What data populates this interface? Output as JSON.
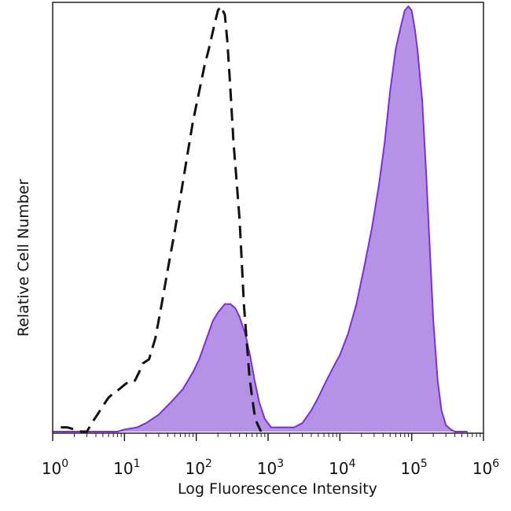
{
  "chart_data": {
    "type": "area",
    "title": "",
    "xlabel": "Log Fluorescence Intensity",
    "ylabel": "Relative Cell Number",
    "xscale": "log",
    "xlim": [
      1,
      1000000
    ],
    "ylim": [
      0,
      1
    ],
    "grid": false,
    "legend": "none",
    "x_ticks": [
      {
        "base": "10",
        "exp": "0",
        "value": 1
      },
      {
        "base": "10",
        "exp": "1",
        "value": 10
      },
      {
        "base": "10",
        "exp": "2",
        "value": 100
      },
      {
        "base": "10",
        "exp": "3",
        "value": 1000
      },
      {
        "base": "10",
        "exp": "4",
        "value": 10000
      },
      {
        "base": "10",
        "exp": "5",
        "value": 100000
      },
      {
        "base": "10",
        "exp": "6",
        "value": 1000000
      }
    ],
    "series": [
      {
        "style": "dashed",
        "color": "#111111",
        "fill": "none",
        "x": [
          1.3,
          1.6,
          2.0,
          2.5,
          3.0,
          3.5,
          4.2,
          5.0,
          6.0,
          7.0,
          8.5,
          10,
          12,
          14,
          16,
          18,
          22,
          27,
          33,
          40,
          50,
          60,
          75,
          90,
          110,
          130,
          150,
          175,
          200,
          220,
          250,
          270,
          290,
          310,
          330,
          360,
          400,
          430,
          460,
          500,
          550,
          600,
          650,
          700,
          800
        ],
        "y": [
          0.01,
          0.01,
          0.005,
          0.0,
          0.0,
          0.02,
          0.04,
          0.06,
          0.08,
          0.09,
          0.1,
          0.11,
          0.12,
          0.12,
          0.14,
          0.16,
          0.17,
          0.22,
          0.3,
          0.38,
          0.47,
          0.55,
          0.65,
          0.73,
          0.8,
          0.86,
          0.9,
          0.95,
          0.99,
          1.0,
          0.98,
          0.92,
          0.84,
          0.76,
          0.68,
          0.6,
          0.5,
          0.4,
          0.3,
          0.22,
          0.13,
          0.08,
          0.04,
          0.02,
          0.0
        ]
      },
      {
        "style": "solid",
        "color": "#7b2fd8",
        "fill": "#b592e6",
        "x": [
          1,
          3,
          5,
          8,
          10,
          15,
          20,
          30,
          45,
          65,
          90,
          110,
          140,
          170,
          200,
          250,
          300,
          350,
          400,
          480,
          560,
          650,
          750,
          900,
          1100,
          1400,
          1800,
          2300,
          3000,
          4000,
          5000,
          6500,
          8000,
          10000,
          13000,
          17000,
          22000,
          28000,
          35000,
          42000,
          50000,
          60000,
          70000,
          80000,
          90000,
          100000,
          110000,
          120000,
          140000,
          160000,
          180000,
          200000,
          230000,
          260000,
          300000,
          350000,
          400000,
          500000,
          600000
        ],
        "y": [
          0.0,
          0.0,
          0.0,
          0.0,
          0.005,
          0.01,
          0.02,
          0.04,
          0.07,
          0.1,
          0.14,
          0.17,
          0.22,
          0.26,
          0.28,
          0.3,
          0.3,
          0.29,
          0.27,
          0.23,
          0.18,
          0.12,
          0.07,
          0.03,
          0.01,
          0.01,
          0.01,
          0.01,
          0.02,
          0.05,
          0.08,
          0.12,
          0.15,
          0.18,
          0.23,
          0.3,
          0.39,
          0.48,
          0.58,
          0.68,
          0.8,
          0.9,
          0.95,
          0.99,
          1.0,
          0.99,
          0.95,
          0.9,
          0.78,
          0.6,
          0.42,
          0.26,
          0.12,
          0.05,
          0.015,
          0.005,
          0.0,
          0.0,
          0.0
        ]
      }
    ]
  }
}
